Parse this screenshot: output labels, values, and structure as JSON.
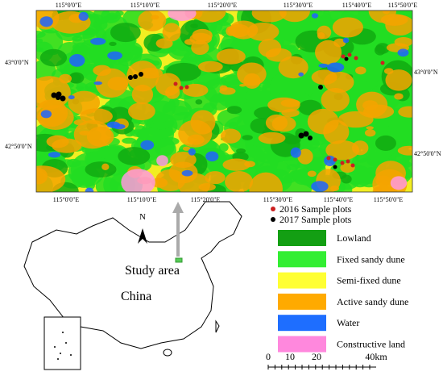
{
  "map": {
    "top_ticks": [
      "115°0'0\"E",
      "115°10'0\"E",
      "115°20'0\"E",
      "115°30'0\"E",
      "115°40'0\"E",
      "115°50'0\"E"
    ],
    "bottom_ticks": [
      "115°0'0\"E",
      "115°10'0\"E",
      "115°20'0\"E",
      "115°30'0\"E",
      "115°40'0\"E",
      "115°50'0\"E"
    ],
    "left_ticks": [
      "43°0'0\"N",
      "42°50'0\"N"
    ],
    "right_ticks": [
      "43°0'0\"N",
      "42°50'0\"N"
    ]
  },
  "legend": {
    "points": [
      "2016 Sample plots",
      "2017 Sample plots"
    ],
    "classes": [
      "Lowland",
      "Fixed sandy dune",
      "Semi-fixed dune",
      "Active sandy dune",
      "Water",
      "Constructive land"
    ]
  },
  "inset": {
    "north": "N",
    "label": "Study area",
    "country": "China"
  },
  "scale_bar": {
    "labels": [
      "0",
      "10",
      "20",
      "40km"
    ]
  }
}
